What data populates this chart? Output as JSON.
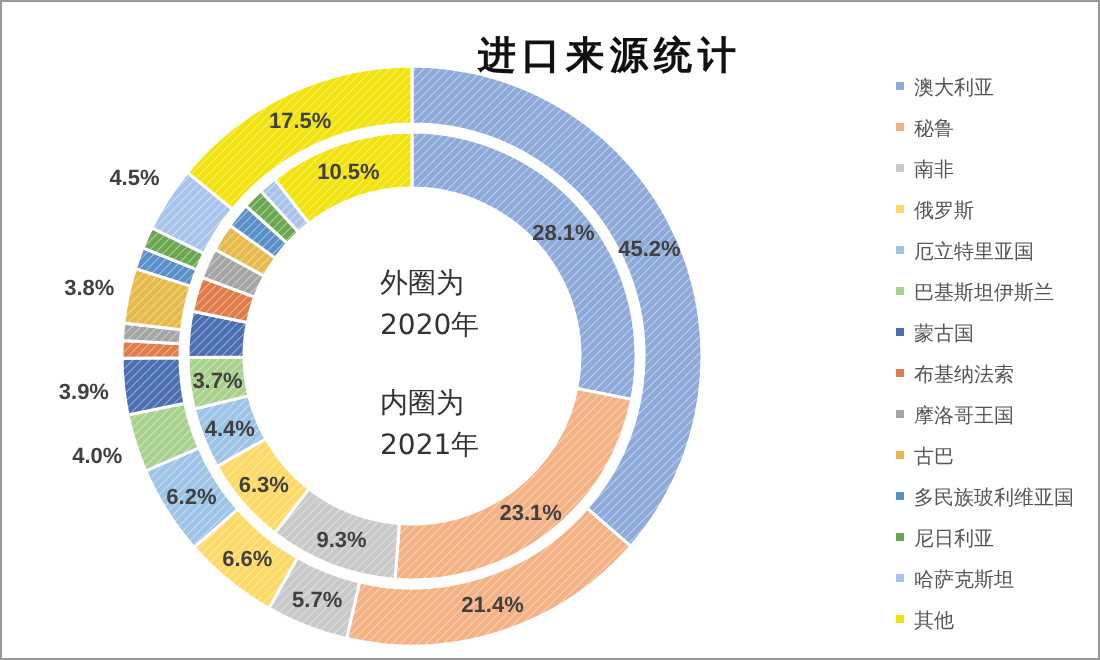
{
  "chart_data": {
    "type": "donut",
    "title": "进口来源统计",
    "categories": [
      "澳大利亚",
      "秘鲁",
      "南非",
      "俄罗斯",
      "厄立特里亚国",
      "巴基斯坦伊斯兰",
      "蒙古国",
      "布基纳法索",
      "摩洛哥王国",
      "古巴",
      "多民族玻利维亚国",
      "尼日利亚",
      "哈萨克斯坦",
      "其他"
    ],
    "colors": [
      "#8eaadb",
      "#f4b183",
      "#c9c9c9",
      "#ffd966",
      "#9dc3e6",
      "#a9d18e",
      "#4a6eb0",
      "#e07b4a",
      "#a5a5a5",
      "#e5b94a",
      "#5b8fc9",
      "#6aa84f",
      "#a9c4eb",
      "#f2e30c"
    ],
    "series": [
      {
        "values": [
          45.2,
          21.4,
          5.7,
          6.6,
          6.2,
          4.0,
          3.9,
          1.2,
          1.2,
          3.8,
          1.5,
          1.5,
          4.5,
          17.5
        ],
        "value_labels": [
          "45.2%",
          "21.4%",
          "5.7%",
          "6.6%",
          "6.2%",
          "4.0%",
          "3.9%",
          null,
          null,
          "3.8%",
          null,
          null,
          "4.5%",
          "17.5%"
        ]
      },
      {
        "values": [
          28.1,
          23.1,
          9.3,
          6.3,
          4.4,
          3.7,
          3.3,
          2.5,
          2.2,
          2.0,
          1.8,
          1.5,
          1.3,
          10.5
        ],
        "value_labels": [
          "28.1%",
          "23.1%",
          "9.3%",
          "6.3%",
          "4.4%",
          "3.7%",
          null,
          null,
          null,
          null,
          null,
          null,
          null,
          "10.5%"
        ]
      }
    ],
    "annotations": [
      "外圈为\n2020年",
      "内圈为\n2021年"
    ],
    "legend": "right"
  }
}
